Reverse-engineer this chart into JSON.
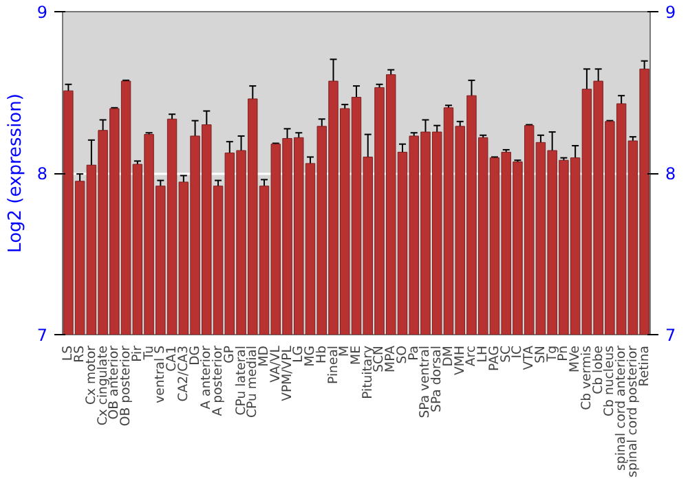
{
  "chart_data": {
    "type": "bar",
    "ylabel": "Log2 (expression)",
    "categories": [
      "LS",
      "RS",
      "Cx motor",
      "Cx cingulate",
      "OB anterior",
      "OB posterior",
      "Pir",
      "Tu",
      "ventral S",
      "CA1",
      "CA2/CA3",
      "DG",
      "A anterior",
      "A posterior",
      "GP",
      "CPu lateral",
      "CPu medial",
      "MD",
      "VA/VL",
      "VPM/VPL",
      "LG",
      "MG",
      "Hb",
      "Pineal",
      "M",
      "ME",
      "Pituitary",
      "SCN",
      "MPA",
      "SO",
      "Pa",
      "SPa ventral",
      "SPa dorsal",
      "DM",
      "VMH",
      "Arc",
      "LH",
      "PAG",
      "SC",
      "IC",
      "VTA",
      "SN",
      "Tg",
      "Pn",
      "MVe",
      "Cb vermis",
      "Cb lobe",
      "Cb nucleus",
      "spinal cord anterior",
      "spinal cord posterior",
      "Retina"
    ],
    "values": [
      8.51,
      7.95,
      8.05,
      8.265,
      8.4,
      8.57,
      8.055,
      8.24,
      7.92,
      8.335,
      7.945,
      8.23,
      8.3,
      7.92,
      8.125,
      8.14,
      8.46,
      7.92,
      8.18,
      8.215,
      8.22,
      8.06,
      8.29,
      8.57,
      8.4,
      8.47,
      8.1,
      8.53,
      8.61,
      8.13,
      8.23,
      8.255,
      8.255,
      8.405,
      8.29,
      8.48,
      8.22,
      8.095,
      8.13,
      8.07,
      8.295,
      8.19,
      8.14,
      8.08,
      8.095,
      8.52,
      8.57,
      8.32,
      8.43,
      8.2,
      8.645
    ],
    "errors": [
      0.04,
      0.045,
      0.155,
      0.065,
      0.005,
      0.005,
      0.02,
      0.01,
      0.035,
      0.03,
      0.04,
      0.095,
      0.085,
      0.035,
      0.07,
      0.09,
      0.08,
      0.04,
      0.005,
      0.06,
      0.03,
      0.04,
      0.045,
      0.135,
      0.025,
      0.07,
      0.14,
      0.02,
      0.03,
      0.05,
      0.02,
      0.075,
      0.04,
      0.015,
      0.03,
      0.095,
      0.015,
      0.005,
      0.015,
      0.01,
      0.005,
      0.045,
      0.115,
      0.015,
      0.075,
      0.125,
      0.075,
      0.005,
      0.05,
      0.025,
      0.05
    ],
    "color": "#b83232",
    "ylim": [
      7,
      9
    ],
    "yticks": [
      7,
      8,
      9
    ],
    "y2lim": [
      7,
      9
    ],
    "y2ticks": [
      7,
      8,
      9
    ],
    "grid": "y"
  }
}
